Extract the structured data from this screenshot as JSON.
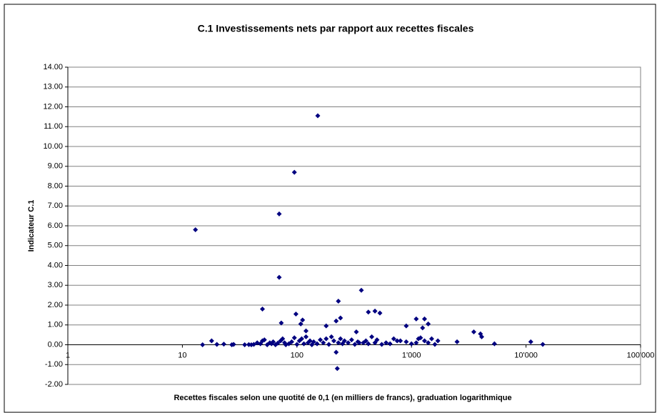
{
  "chart_data": {
    "type": "scatter",
    "title": "C.1 Investissements nets par rapport aux recettes fiscales",
    "x_label": "Recettes fiscales selon une quotité de 0,1 (en milliers de francs), graduation logarithmique",
    "y_label": "Indicateur C.1",
    "x_log": true,
    "grid": true,
    "xlim": [
      1,
      100000
    ],
    "xticks": [
      1,
      10,
      100,
      {
        "value": 1000,
        "label": "1'000"
      },
      {
        "value": 10000,
        "label": "10'000"
      },
      {
        "value": 100000,
        "label": "100'000"
      }
    ],
    "ylim": [
      -2,
      14
    ],
    "yticks": [
      {
        "value": -2,
        "label": "-2.00"
      },
      {
        "value": -1,
        "label": "-1.00"
      },
      {
        "value": 0,
        "label": "0.00"
      },
      {
        "value": 1,
        "label": "1.00"
      },
      {
        "value": 2,
        "label": "2.00"
      },
      {
        "value": 3,
        "label": "3.00"
      },
      {
        "value": 4,
        "label": "4.00"
      },
      {
        "value": 5,
        "label": "5.00"
      },
      {
        "value": 6,
        "label": "6.00"
      },
      {
        "value": 7,
        "label": "7.00"
      },
      {
        "value": 8,
        "label": "8.00"
      },
      {
        "value": 9,
        "label": "9.00"
      },
      {
        "value": 10,
        "label": "10.00"
      },
      {
        "value": 11,
        "label": "11.00"
      },
      {
        "value": 12,
        "label": "12.00"
      },
      {
        "value": 13,
        "label": "13.00"
      },
      {
        "value": 14,
        "label": "14.00"
      }
    ],
    "series": [
      {
        "color": "#000080",
        "x": [
          13,
          152,
          95,
          70,
          70,
          50,
          365,
          230,
          98,
          480,
          420,
          530,
          220,
          240,
          73,
          108,
          112,
          1100,
          1300,
          900,
          1400,
          1250,
          3500,
          4000,
          4100,
          180,
          330,
          120,
          15,
          18,
          20,
          23,
          27,
          28,
          35,
          38,
          40,
          42,
          45,
          48,
          50,
          52,
          55,
          58,
          60,
          62,
          65,
          68,
          72,
          75,
          78,
          80,
          85,
          90,
          95,
          100,
          105,
          110,
          115,
          120,
          125,
          130,
          135,
          140,
          150,
          160,
          170,
          180,
          190,
          200,
          210,
          220,
          225,
          230,
          240,
          250,
          260,
          280,
          300,
          320,
          340,
          350,
          380,
          400,
          420,
          450,
          480,
          500,
          550,
          600,
          650,
          700,
          750,
          800,
          900,
          1000,
          1100,
          1150,
          1200,
          1300,
          1400,
          1500,
          1600,
          1700,
          2500,
          5300,
          11000,
          14000
        ],
        "values": [
          5.8,
          11.55,
          8.7,
          6.6,
          3.4,
          1.8,
          2.75,
          2.2,
          1.55,
          1.7,
          1.65,
          1.6,
          1.2,
          1.35,
          1.1,
          1.05,
          1.25,
          1.3,
          1.3,
          0.95,
          1.05,
          0.85,
          0.65,
          0.55,
          0.4,
          0.95,
          0.65,
          0.7,
          0,
          0.2,
          0.02,
          0.03,
          0,
          0.02,
          0,
          0.01,
          0,
          0.02,
          0.1,
          0.05,
          0.2,
          0.25,
          0,
          0.1,
          0.05,
          0.15,
          0,
          0.08,
          0.2,
          0.3,
          0.1,
          0,
          0.05,
          0.15,
          0.35,
          0.02,
          0.2,
          0.3,
          0.05,
          0.4,
          0.1,
          0.2,
          0,
          0.15,
          0.05,
          0.25,
          0.1,
          0.3,
          0.02,
          0.4,
          0.2,
          -0.38,
          -1.2,
          0.1,
          0.3,
          0.05,
          0.2,
          0.1,
          0.25,
          0.02,
          0.15,
          0.1,
          0.1,
          0.2,
          0.05,
          0.4,
          0.1,
          0.25,
          0.02,
          0.1,
          0.05,
          0.3,
          0.2,
          0.2,
          0.15,
          0.05,
          0.1,
          0.3,
          0.35,
          0.2,
          0.1,
          0.3,
          0.02,
          0.2,
          0.15,
          0.05,
          0.15,
          0.02
        ]
      }
    ]
  }
}
